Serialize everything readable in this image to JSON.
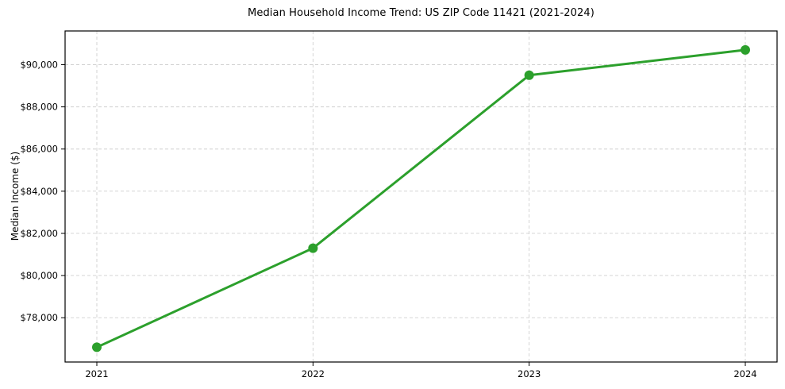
{
  "chart_data": {
    "type": "line",
    "title": "Median Household Income Trend: US ZIP Code 11421 (2021-2024)",
    "xlabel": "",
    "ylabel": "Median Income ($)",
    "categories": [
      "2021",
      "2022",
      "2023",
      "2024"
    ],
    "series": [
      {
        "name": "Median Household Income",
        "values": [
          76600,
          81300,
          89500,
          90700
        ]
      }
    ],
    "ylim": [
      75900,
      91600
    ],
    "yticks": {
      "values": [
        78000,
        80000,
        82000,
        84000,
        86000,
        88000,
        90000
      ],
      "labels": [
        "$78,000",
        "$80,000",
        "$82,000",
        "$84,000",
        "$86,000",
        "$88,000",
        "$90,000"
      ]
    },
    "grid": "dashed",
    "legend_position": "none",
    "line_color": "#2ca02c",
    "grid_color": "#cfcfcf",
    "spine_color": "#000000",
    "background": "#ffffff",
    "marker": "circle"
  }
}
